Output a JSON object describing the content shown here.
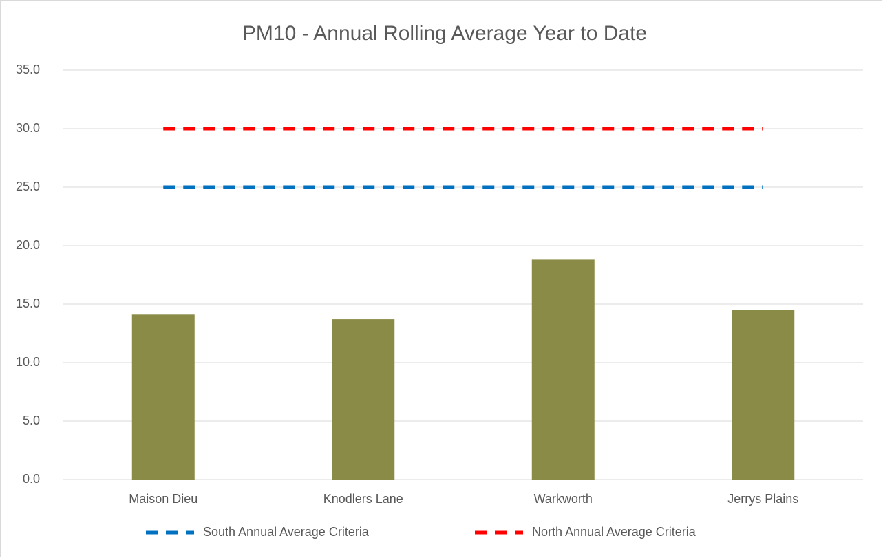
{
  "chart_data": {
    "type": "bar",
    "title": "PM10 - Annual Rolling Average Year to Date",
    "categories": [
      "Maison Dieu",
      "Knodlers Lane",
      "Warkworth",
      "Jerrys Plains"
    ],
    "values": [
      14.1,
      13.7,
      18.8,
      14.5
    ],
    "color": "#8a8b47",
    "series": [
      {
        "name": "South Annual Average Criteria",
        "type": "line",
        "color": "#0070c0",
        "values": [
          25,
          25,
          25,
          25
        ]
      },
      {
        "name": "North Annual Average Criteria",
        "type": "line",
        "color": "#ff0000",
        "values": [
          30,
          30,
          30,
          30
        ]
      }
    ],
    "ylim": [
      0,
      35
    ],
    "yticks": [
      {
        "value": 0,
        "label": "0.0"
      },
      {
        "value": 5,
        "label": "5.0"
      },
      {
        "value": 10,
        "label": "10.0"
      },
      {
        "value": 15,
        "label": "15.0"
      },
      {
        "value": 20,
        "label": "20.0"
      },
      {
        "value": 25,
        "label": "25.0"
      },
      {
        "value": 30,
        "label": "30.0"
      },
      {
        "value": 35,
        "label": "35.0"
      }
    ],
    "grid": true,
    "legend": "bottom"
  }
}
